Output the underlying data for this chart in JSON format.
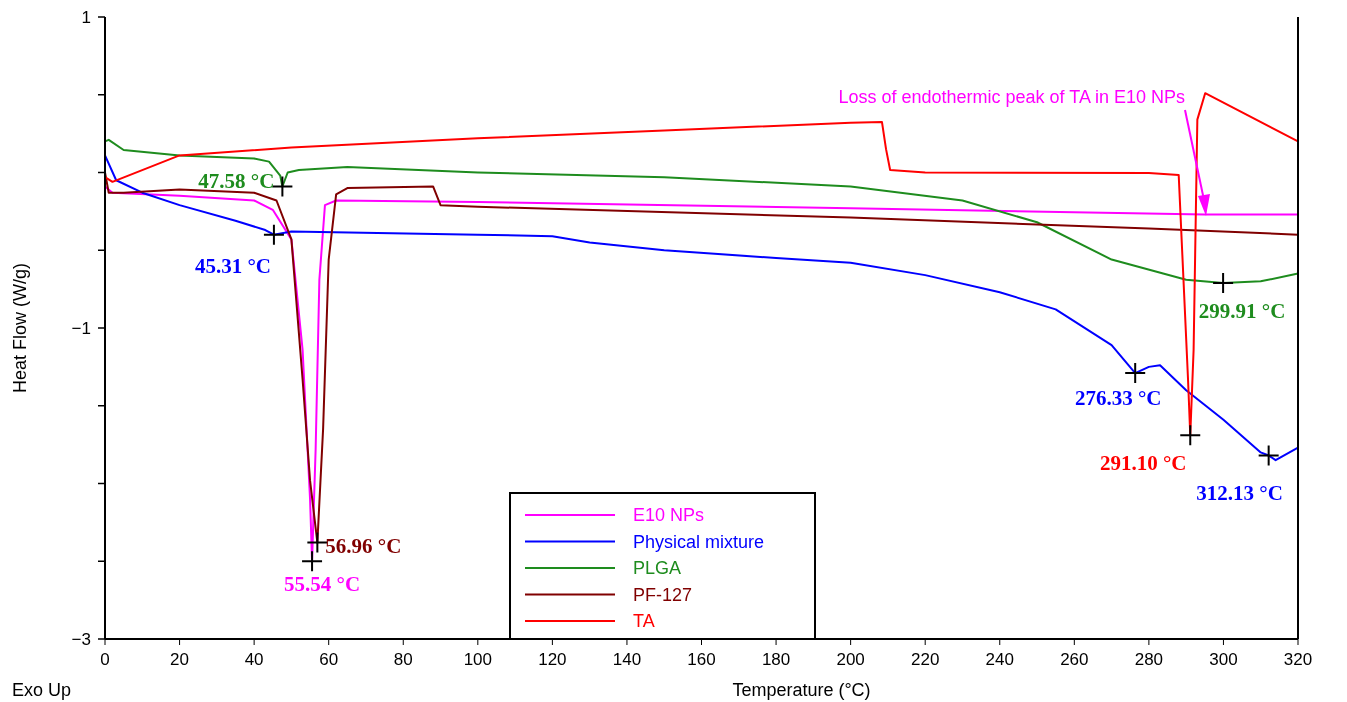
{
  "chart_data": {
    "type": "line",
    "xlabel": "Temperature (°C)",
    "ylabel": "Heat Flow (W/g)",
    "xlim": [
      0,
      320
    ],
    "xticks": [
      0,
      20,
      40,
      60,
      80,
      100,
      120,
      140,
      160,
      180,
      200,
      220,
      240,
      260,
      280,
      300,
      320
    ],
    "ylim": [
      -3,
      1
    ],
    "yticks": [
      {
        "value": -3,
        "label": "−3"
      },
      {
        "value": -2.5,
        "label": null
      },
      {
        "value": -2,
        "label": null
      },
      {
        "value": -1.5,
        "label": null
      },
      {
        "value": -1,
        "label": "−1"
      },
      {
        "value": -0.5,
        "label": null
      },
      {
        "value": 0,
        "label": null
      },
      {
        "value": 0.5,
        "label": null
      },
      {
        "value": 1,
        "label": "1"
      }
    ],
    "grid": false,
    "legend": "bottom",
    "marker": "none",
    "line_style": "solid",
    "series": [
      {
        "name": "E10 NPs",
        "color": "#ff00ff",
        "x": [
          0,
          2,
          20,
          40,
          45,
          50,
          53,
          55,
          55.54,
          56.5,
          57.5,
          59,
          62,
          100,
          200,
          295,
          320
        ],
        "values": [
          -0.09,
          -0.13,
          -0.15,
          -0.18,
          -0.24,
          -0.43,
          -1.14,
          -2.1,
          -2.5,
          -1.78,
          -0.69,
          -0.21,
          -0.18,
          -0.19,
          -0.23,
          -0.27,
          -0.27
        ]
      },
      {
        "name": "Physical mixture",
        "color": "#0000ff",
        "x": [
          0,
          3,
          10,
          20,
          35,
          43,
          45.31,
          50,
          100,
          120,
          130,
          150,
          180,
          200,
          220,
          240,
          255,
          270,
          276.33,
          280,
          283,
          290,
          300,
          310,
          312.13,
          314,
          320
        ],
        "values": [
          0.11,
          -0.05,
          -0.13,
          -0.21,
          -0.31,
          -0.37,
          -0.4,
          -0.38,
          -0.4,
          -0.41,
          -0.45,
          -0.5,
          -0.55,
          -0.58,
          -0.66,
          -0.77,
          -0.88,
          -1.11,
          -1.29,
          -1.25,
          -1.24,
          -1.4,
          -1.59,
          -1.8,
          -1.82,
          -1.85,
          -1.77
        ]
      },
      {
        "name": "PLGA",
        "color": "#1e8c1e",
        "x": [
          0,
          1,
          5,
          20,
          40,
          44,
          47,
          47.58,
          49,
          52,
          65,
          100,
          150,
          200,
          230,
          250,
          270,
          290,
          299.91,
          310,
          320
        ],
        "values": [
          0.2,
          0.21,
          0.145,
          0.11,
          0.09,
          0.07,
          -0.02,
          -0.09,
          0,
          0.016,
          0.035,
          0,
          -0.03,
          -0.09,
          -0.18,
          -0.32,
          -0.56,
          -0.69,
          -0.71,
          -0.7,
          -0.65
        ]
      },
      {
        "name": "PF-127",
        "color": "#800000",
        "x": [
          0,
          1,
          5,
          20,
          40,
          46,
          50,
          53,
          55,
          56.96,
          58.5,
          60,
          62,
          65,
          88,
          90,
          100,
          200,
          280,
          320
        ],
        "values": [
          0,
          -0.13,
          -0.13,
          -0.11,
          -0.13,
          -0.18,
          -0.43,
          -1.33,
          -1.98,
          -2.38,
          -1.65,
          -0.56,
          -0.14,
          -0.1,
          -0.09,
          -0.21,
          -0.22,
          -0.29,
          -0.36,
          -0.4
        ]
      },
      {
        "name": "TA",
        "color": "#ff0000",
        "x": [
          0,
          2,
          20,
          50,
          100,
          150,
          200,
          208.4,
          209.5,
          210.6,
          220,
          280,
          288,
          290.5,
          291.1,
          292,
          293,
          295.1,
          320
        ],
        "values": [
          -0.03,
          -0.06,
          0.11,
          0.16,
          0.22,
          0.27,
          0.32,
          0.325,
          0.15,
          0.016,
          0,
          -0.003,
          -0.016,
          -1.33,
          -1.69,
          -1.14,
          0.34,
          0.51,
          0.2
        ]
      }
    ],
    "annotations": [
      {
        "text": "47.58 °C",
        "x": 47.58,
        "y": -0.09
      },
      {
        "text": "45.31 °C",
        "x": 45.31,
        "y": -0.4
      },
      {
        "text": "55.54 °C",
        "x": 55.54,
        "y": -2.5
      },
      {
        "text": "56.96 °C",
        "x": 56.96,
        "y": -2.38
      },
      {
        "text": "276.33 °C",
        "x": 276.33,
        "y": -1.29
      },
      {
        "text": "291.10 °C",
        "x": 291.1,
        "y": -1.69
      },
      {
        "text": "312.13 °C",
        "x": 312.13,
        "y": -1.82
      },
      {
        "text": "299.91 °C",
        "x": 299.91,
        "y": -0.71
      },
      "Loss of endothermic peak of TA in E10 NPs",
      "Exo Up"
    ]
  }
}
